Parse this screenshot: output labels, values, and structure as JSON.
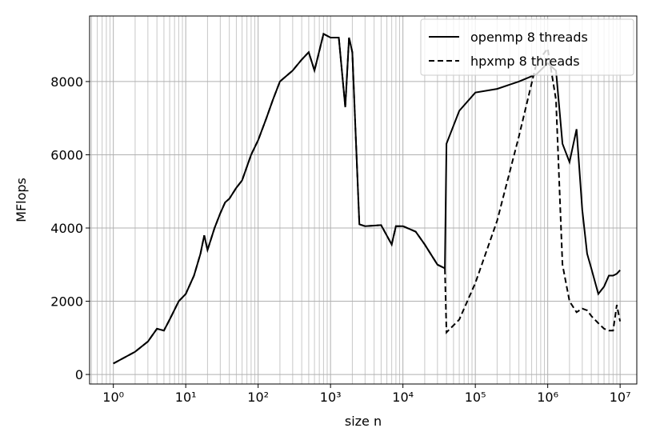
{
  "chart_data": {
    "type": "line",
    "xlabel": "size n",
    "ylabel": "MFlops",
    "xscale": "log",
    "grid": true,
    "legend": "upper right",
    "xlim": [
      0.47,
      17000000
    ],
    "ylim": [
      -260,
      9790
    ],
    "xticks": [
      {
        "value": 1,
        "label": "10⁰"
      },
      {
        "value": 10,
        "label": "10¹"
      },
      {
        "value": 100,
        "label": "10²"
      },
      {
        "value": 1000,
        "label": "10³"
      },
      {
        "value": 10000,
        "label": "10⁴"
      },
      {
        "value": 100000,
        "label": "10⁵"
      },
      {
        "value": 1000000,
        "label": "10⁶"
      },
      {
        "value": 10000000,
        "label": "10⁷"
      }
    ],
    "xminorticks": [
      0.5,
      0.6,
      0.7,
      0.8,
      0.9,
      2,
      3,
      4,
      5,
      6,
      7,
      8,
      9,
      20,
      30,
      40,
      50,
      60,
      70,
      80,
      90,
      200,
      300,
      400,
      500,
      600,
      700,
      800,
      900,
      2000,
      3000,
      4000,
      5000,
      6000,
      7000,
      8000,
      9000,
      20000,
      30000,
      40000,
      50000,
      60000,
      70000,
      80000,
      90000,
      200000,
      300000,
      400000,
      500000,
      600000,
      700000,
      800000,
      900000,
      2000000,
      3000000,
      4000000,
      5000000,
      6000000,
      7000000,
      8000000,
      9000000
    ],
    "yticks": [
      0,
      2000,
      4000,
      6000,
      8000
    ],
    "x": [
      1,
      2,
      3,
      4,
      5,
      6,
      8,
      10,
      13,
      16,
      18,
      20,
      25,
      30,
      35,
      40,
      50,
      60,
      80,
      100,
      130,
      160,
      200,
      300,
      400,
      500,
      600,
      800,
      1000,
      1300,
      1600,
      1800,
      2000,
      2500,
      3000,
      5000,
      7000,
      8000,
      10000,
      15000,
      20000,
      30000,
      38000,
      40000,
      60000,
      100000,
      200000,
      400000,
      700000,
      1000000,
      1300000,
      1600000,
      2000000,
      2500000,
      3000000,
      3500000,
      4000000,
      5000000,
      6000000,
      7000000,
      8000000,
      9000000,
      10000000
    ],
    "series": [
      {
        "name": "openmp 8 threads",
        "color": "#000000",
        "dash": "solid",
        "values": [
          300,
          620,
          900,
          1250,
          1200,
          1500,
          2000,
          2200,
          2700,
          3300,
          3800,
          3400,
          4000,
          4400,
          4700,
          4800,
          5100,
          5300,
          6000,
          6400,
          7000,
          7500,
          8000,
          8300,
          8600,
          8800,
          8300,
          9300,
          9200,
          9200,
          7300,
          9200,
          8800,
          4100,
          4050,
          4080,
          3550,
          4050,
          4050,
          3900,
          3550,
          3000,
          2900,
          6300,
          7200,
          7700,
          7800,
          8000,
          8200,
          8500,
          8300,
          6300,
          5800,
          6700,
          4500,
          3300,
          2900,
          2200,
          2400,
          2700,
          2700,
          2750,
          2850
        ]
      },
      {
        "name": "hpxmp 8 threads",
        "color": "#000000",
        "dash": "dashed",
        "values": [
          300,
          620,
          900,
          1250,
          1200,
          1500,
          2000,
          2200,
          2700,
          3300,
          3800,
          3400,
          4000,
          4400,
          4700,
          4800,
          5100,
          5300,
          6000,
          6400,
          7000,
          7500,
          8000,
          8300,
          8600,
          8800,
          8300,
          9300,
          9200,
          9200,
          7300,
          9200,
          8800,
          4100,
          4050,
          4080,
          3550,
          4050,
          4050,
          3900,
          3550,
          3000,
          2900,
          1150,
          1500,
          2500,
          4200,
          6500,
          8500,
          8900,
          7500,
          3000,
          2000,
          1700,
          1800,
          1750,
          1600,
          1400,
          1250,
          1200,
          1200,
          1900,
          1450
        ]
      }
    ]
  }
}
